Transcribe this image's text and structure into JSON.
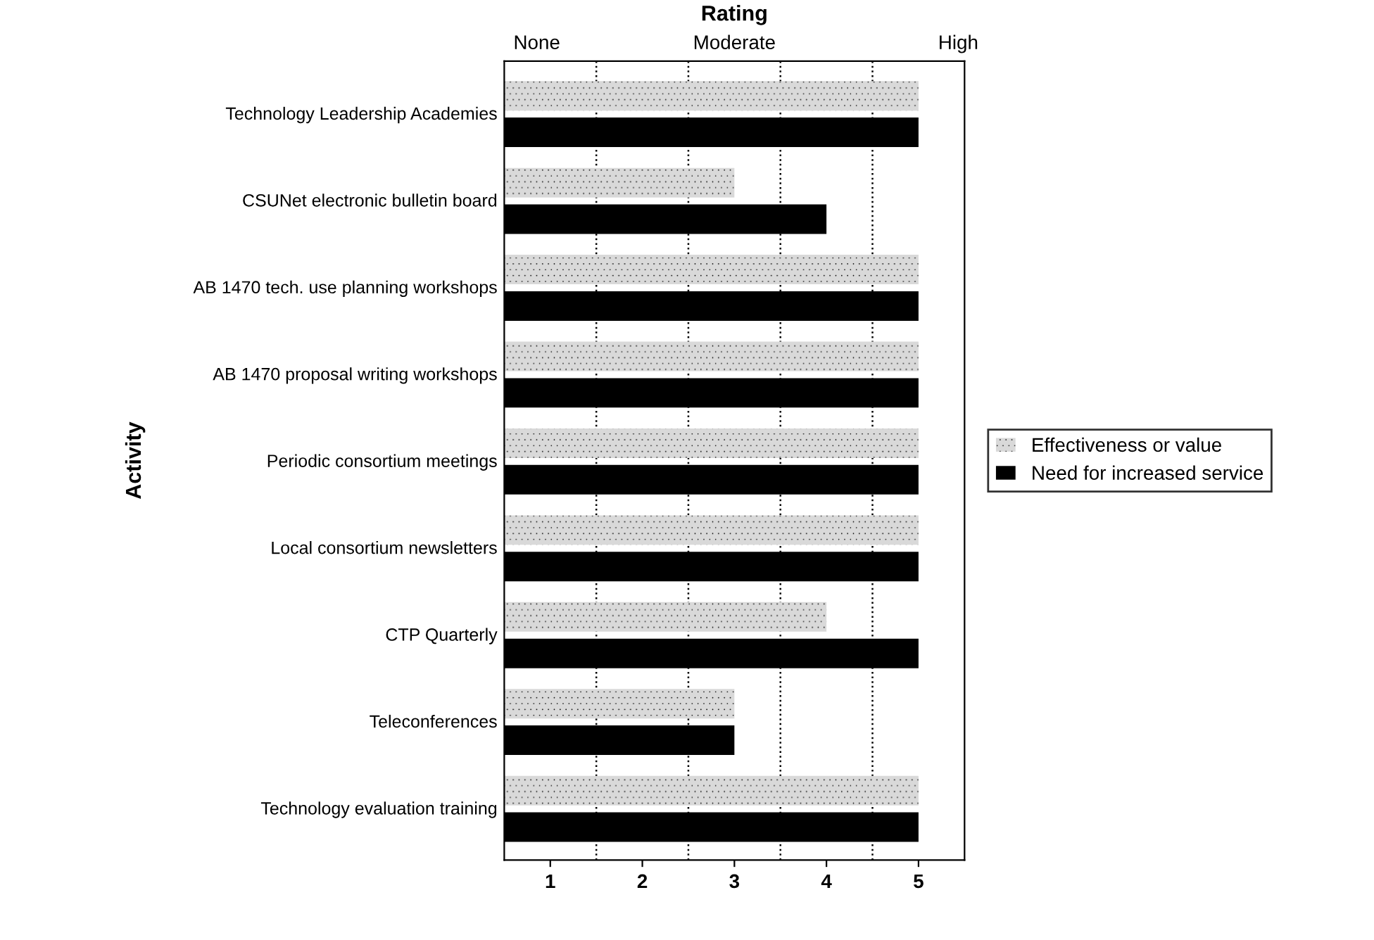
{
  "chart_data": {
    "type": "bar",
    "orientation": "horizontal",
    "x2label": "Rating",
    "ylabel": "Activity",
    "categories": [
      "Technology Leadership Academies",
      "CSUNet electronic bulletin board",
      "AB 1470 tech. use planning workshops",
      "AB 1470 proposal writing workshops",
      "Periodic consortium meetings",
      "Local consortium newsletters",
      "CTP Quarterly",
      "Teleconferences",
      "Technology evaluation training"
    ],
    "series": [
      {
        "name": "Effectiveness or value",
        "color": "#d9d9d9",
        "values": [
          5,
          3,
          5,
          5,
          5,
          5,
          4,
          3,
          5
        ]
      },
      {
        "name": "Need for increased service",
        "color": "#000000",
        "values": [
          5,
          4,
          5,
          5,
          5,
          5,
          5,
          3,
          5
        ]
      }
    ],
    "xlim": [
      0.5,
      5.5
    ],
    "xticks": [
      1,
      2,
      3,
      4,
      5
    ],
    "annotations": [
      "None",
      "Moderate",
      "High"
    ],
    "ref_lines": [
      {
        "axis": "x",
        "value": 1.5,
        "line_style": "dotted",
        "color": "#000000"
      },
      {
        "axis": "x",
        "value": 2.5,
        "line_style": "dotted",
        "color": "#000000"
      },
      {
        "axis": "x",
        "value": 3.5,
        "line_style": "dotted",
        "color": "#000000"
      },
      {
        "axis": "x",
        "value": 4.5,
        "line_style": "dotted",
        "color": "#000000"
      }
    ],
    "legend": "right"
  }
}
